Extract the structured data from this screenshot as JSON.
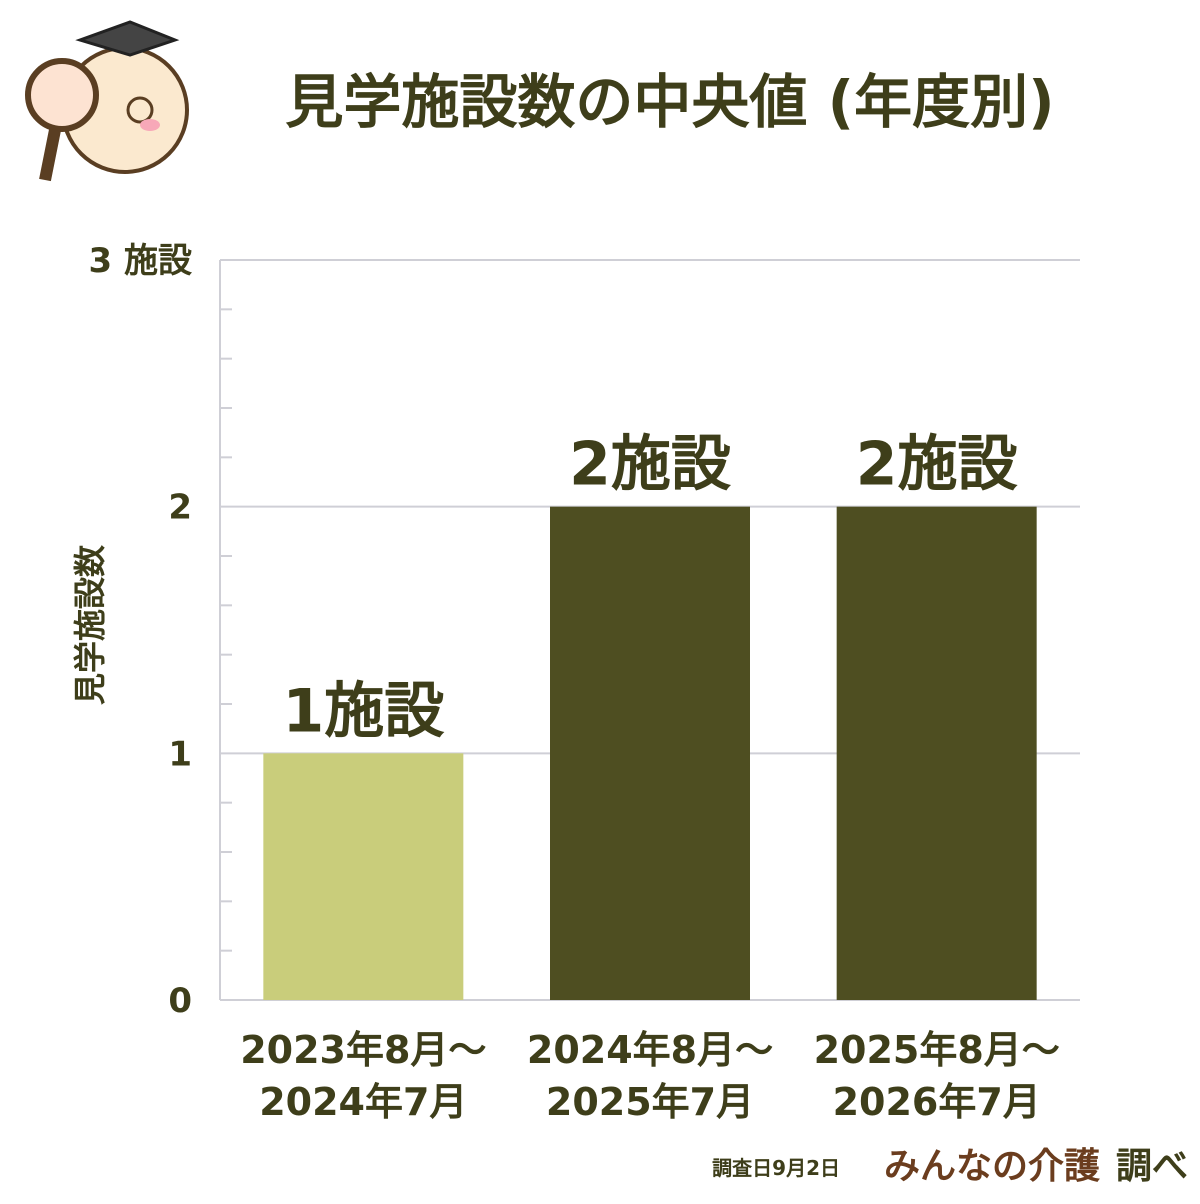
{
  "chart_data": {
    "type": "bar",
    "title": "見学施設数の中央値 (年度別)",
    "y_label": "見学施設数",
    "categories": [
      [
        "2023年8月～",
        "2024年7月"
      ],
      [
        "2024年8月～",
        "2025年7月"
      ],
      [
        "2025年8月～",
        "2026年7月"
      ]
    ],
    "values": [
      1,
      2,
      2
    ],
    "value_labels": [
      "1施設",
      "2施設",
      "2施設"
    ],
    "colors": [
      "#c9cd7b",
      "#4e4e21",
      "#4e4e21"
    ],
    "ylim": [
      0,
      3
    ],
    "yticks": [
      0,
      1,
      2,
      {
        "value": 3,
        "label": "3 施設"
      }
    ],
    "minor_yticks": [
      0.2,
      0.4,
      0.6,
      0.8,
      1.2,
      1.4,
      1.6,
      1.8,
      2.2,
      2.4,
      2.6,
      2.8
    ],
    "grid": true,
    "note": "調査日9月2日",
    "source": "みんなの介護",
    "source_suffix": "調べ"
  }
}
